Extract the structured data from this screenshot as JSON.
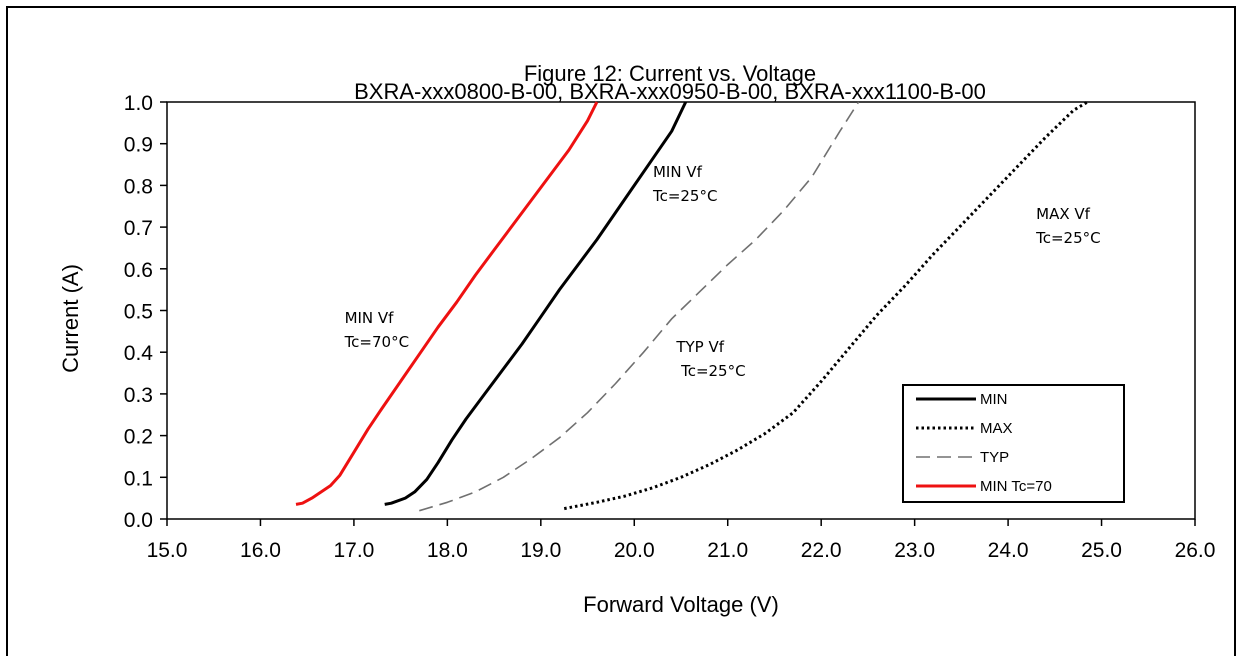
{
  "chart_data": {
    "type": "line",
    "title": "Figure 12:  Current vs. Voltage",
    "subtitle": "BXRA-xxx0800-B-00, BXRA-xxx0950-B-00, BXRA-xxx1100-B-00",
    "xlabel": "Forward  Voltage (V)",
    "ylabel": "Current  (A)",
    "xlim": [
      15.0,
      26.0
    ],
    "ylim": [
      0.0,
      1.0
    ],
    "xticks": [
      "15.0",
      "16.0",
      "17.0",
      "18.0",
      "19.0",
      "20.0",
      "21.0",
      "22.0",
      "23.0",
      "24.0",
      "25.0",
      "26.0"
    ],
    "yticks": [
      "0.0",
      "0.1",
      "0.2",
      "0.3",
      "0.4",
      "0.5",
      "0.6",
      "0.7",
      "0.8",
      "0.9",
      "1.0"
    ],
    "grid": false,
    "legend_position": "bottom-right",
    "series": [
      {
        "name": "MIN",
        "color": "#000000",
        "style": "solid",
        "x": [
          17.33,
          17.4,
          17.55,
          17.65,
          17.78,
          17.9,
          18.05,
          18.2,
          18.4,
          18.6,
          18.8,
          19.0,
          19.2,
          19.4,
          19.6,
          19.8,
          20.0,
          20.2,
          20.4,
          20.55
        ],
        "y": [
          0.035,
          0.038,
          0.05,
          0.065,
          0.095,
          0.135,
          0.19,
          0.24,
          0.3,
          0.36,
          0.42,
          0.485,
          0.55,
          0.61,
          0.67,
          0.735,
          0.8,
          0.865,
          0.93,
          1.0
        ]
      },
      {
        "name": "MAX",
        "color": "#000000",
        "style": "dotted",
        "x": [
          19.25,
          19.6,
          19.9,
          20.2,
          20.5,
          20.8,
          21.1,
          21.4,
          21.7,
          22.0,
          22.3,
          22.6,
          22.9,
          23.2,
          23.5,
          23.8,
          24.1,
          24.4,
          24.7,
          24.85
        ],
        "y": [
          0.025,
          0.04,
          0.055,
          0.075,
          0.1,
          0.13,
          0.165,
          0.205,
          0.255,
          0.33,
          0.41,
          0.49,
          0.56,
          0.635,
          0.705,
          0.775,
          0.845,
          0.915,
          0.98,
          1.0
        ]
      },
      {
        "name": "TYP",
        "color": "#707070",
        "style": "dashed",
        "x": [
          17.7,
          18.0,
          18.3,
          18.6,
          18.9,
          19.2,
          19.5,
          19.8,
          20.1,
          20.4,
          20.7,
          21.0,
          21.3,
          21.6,
          21.9,
          22.2,
          22.4
        ],
        "y": [
          0.02,
          0.04,
          0.065,
          0.1,
          0.145,
          0.195,
          0.255,
          0.325,
          0.4,
          0.48,
          0.545,
          0.61,
          0.67,
          0.74,
          0.82,
          0.93,
          1.0
        ]
      },
      {
        "name": "MIN Tc=70",
        "color": "#ee1111",
        "style": "solid",
        "x": [
          16.38,
          16.45,
          16.55,
          16.65,
          16.75,
          16.85,
          17.0,
          17.15,
          17.3,
          17.5,
          17.7,
          17.9,
          18.1,
          18.3,
          18.5,
          18.7,
          18.9,
          19.1,
          19.3,
          19.5,
          19.6
        ],
        "y": [
          0.035,
          0.038,
          0.05,
          0.065,
          0.08,
          0.105,
          0.16,
          0.215,
          0.265,
          0.33,
          0.395,
          0.46,
          0.52,
          0.585,
          0.645,
          0.705,
          0.765,
          0.825,
          0.885,
          0.955,
          1.0
        ]
      }
    ],
    "annotations": [
      {
        "lines": [
          "MIN Vf",
          "Tc=70°C"
        ],
        "at": [
          16.9,
          0.47
        ]
      },
      {
        "lines": [
          "MIN Vf",
          "Tc=25°C"
        ],
        "at": [
          20.2,
          0.82
        ]
      },
      {
        "lines": [
          "TYP Vf",
          " Tc=25°C"
        ],
        "at": [
          20.45,
          0.4
        ]
      },
      {
        "lines": [
          "MAX Vf",
          "Tc=25°C"
        ],
        "at": [
          24.3,
          0.72
        ]
      }
    ]
  }
}
